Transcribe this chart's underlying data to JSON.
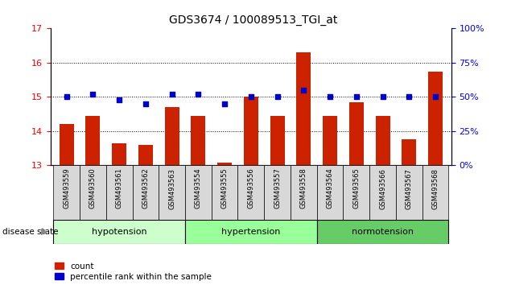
{
  "title": "GDS3674 / 100089513_TGI_at",
  "samples": [
    "GSM493559",
    "GSM493560",
    "GSM493561",
    "GSM493562",
    "GSM493563",
    "GSM493554",
    "GSM493555",
    "GSM493556",
    "GSM493557",
    "GSM493558",
    "GSM493564",
    "GSM493565",
    "GSM493566",
    "GSM493567",
    "GSM493568"
  ],
  "count_values": [
    14.2,
    14.45,
    13.65,
    13.6,
    14.7,
    14.45,
    13.08,
    15.0,
    14.45,
    16.3,
    14.45,
    14.85,
    14.45,
    13.75,
    15.75
  ],
  "percentile_values": [
    50,
    52,
    48,
    45,
    52,
    52,
    45,
    50,
    50,
    55,
    50,
    50,
    50,
    50,
    50
  ],
  "groups": [
    {
      "label": "hypotension",
      "start": 0,
      "end": 5,
      "color": "#ccffcc"
    },
    {
      "label": "hypertension",
      "start": 5,
      "end": 10,
      "color": "#99ff99"
    },
    {
      "label": "normotension",
      "start": 10,
      "end": 15,
      "color": "#66cc66"
    }
  ],
  "ylim_left": [
    13,
    17
  ],
  "ylim_right": [
    0,
    100
  ],
  "yticks_left": [
    13,
    14,
    15,
    16,
    17
  ],
  "yticks_right": [
    0,
    25,
    50,
    75,
    100
  ],
  "bar_color": "#cc2200",
  "dot_color": "#0000cc",
  "background_color": "#ffffff",
  "disease_state_label": "disease state",
  "legend_count_label": "count",
  "legend_percentile_label": "percentile rank within the sample"
}
